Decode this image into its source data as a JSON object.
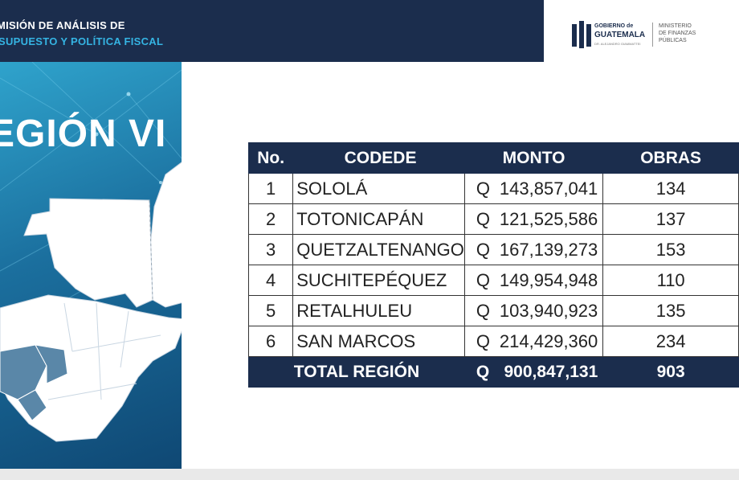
{
  "header": {
    "line1": "MISIÓN DE ANÁLISIS DE",
    "line2": "SUPUESTO Y POLÍTICA FISCAL"
  },
  "logo": {
    "gov_small": "GOBIERNO de",
    "gov_main": "GUATEMALA",
    "gov_tag": "DR. ALEJANDRO GIAMMATTEI",
    "ministry_line1": "MINISTERIO",
    "ministry_line2": "DE FINANZAS",
    "ministry_line3": "PÚBLICAS"
  },
  "region": {
    "title": "EGIÓN VI"
  },
  "table": {
    "headers": {
      "no": "No.",
      "codede": "CODEDE",
      "monto": "MONTO",
      "obras": "OBRAS"
    },
    "rows": [
      {
        "no": "1",
        "codede": "SOLOLÁ",
        "currency": "Q",
        "monto": "143,857,041",
        "obras": "134"
      },
      {
        "no": "2",
        "codede": "TOTONICAPÁN",
        "currency": "Q",
        "monto": "121,525,586",
        "obras": "137"
      },
      {
        "no": "3",
        "codede": "QUETZALTENANGO",
        "currency": "Q",
        "monto": "167,139,273",
        "obras": "153"
      },
      {
        "no": "4",
        "codede": "SUCHITEPÉQUEZ",
        "currency": "Q",
        "monto": "149,954,948",
        "obras": "110"
      },
      {
        "no": "5",
        "codede": "RETALHULEU",
        "currency": "Q",
        "monto": "103,940,923",
        "obras": "135"
      },
      {
        "no": "6",
        "codede": "SAN MARCOS",
        "currency": "Q",
        "monto": "214,429,360",
        "obras": "234"
      }
    ],
    "total": {
      "label": "TOTAL REGIÓN",
      "currency": "Q",
      "monto": "900,847,131",
      "obras": "903"
    }
  },
  "colors": {
    "navy": "#1b2d4d",
    "accent": "#35b4e3",
    "panel": "#1b6f9e"
  },
  "icons": {
    "logo": "guatemala-flag-bars-icon",
    "map": "guatemala-map"
  }
}
